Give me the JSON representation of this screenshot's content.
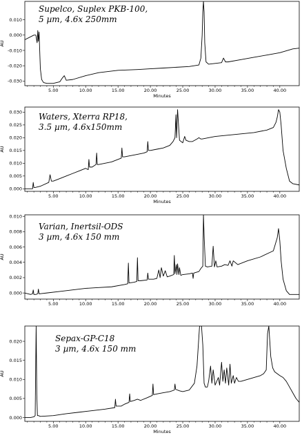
{
  "chart_data": [
    {
      "type": "line",
      "title": "Supelco, Suplex PKB-100,",
      "subtitle": "5 µm, 4.6x 250mm",
      "xlabel": "Minutes",
      "ylabel": "AU",
      "xlim": [
        0.6,
        43
      ],
      "ylim": [
        -0.033,
        0.022
      ],
      "xticks": [
        {
          "v": 5,
          "label": "5.00"
        },
        {
          "v": 10,
          "label": "10.00"
        },
        {
          "v": 15,
          "label": "15.00"
        },
        {
          "v": 20,
          "label": "20.00"
        },
        {
          "v": 25,
          "label": "25.00"
        },
        {
          "v": 30,
          "label": "30.00"
        },
        {
          "v": 35,
          "label": "35.00"
        },
        {
          "v": 40,
          "label": "40.00"
        }
      ],
      "yticks": [
        {
          "v": 0.01,
          "label": "0.010"
        },
        {
          "v": 0.0,
          "label": "0.000"
        },
        {
          "v": -0.01,
          "label": "-0.010"
        },
        {
          "v": -0.02,
          "label": "-0.020"
        },
        {
          "v": -0.03,
          "label": "-0.030"
        }
      ],
      "series": [
        {
          "x": [
            0.6,
            2.0,
            2.3,
            2.5,
            2.6,
            2.7,
            2.8,
            2.9,
            3.0,
            3.2,
            3.5,
            4.0,
            5.0,
            6.0,
            6.4,
            6.7,
            7.0,
            8.0,
            10.0,
            12.0,
            15.0,
            18.0,
            20.0,
            22.0,
            24.0,
            26.0,
            27.5,
            27.8,
            28.0,
            28.1,
            28.2,
            28.3,
            28.4,
            28.6,
            29.0,
            30.0,
            31.0,
            31.3,
            31.6,
            32.0,
            34.0,
            36.0,
            38.0,
            40.0,
            42.0,
            43.0
          ],
          "y": [
            -0.003,
            0.0,
            0.0,
            -0.005,
            0.003,
            -0.004,
            0.002,
            -0.01,
            -0.022,
            -0.029,
            -0.031,
            -0.0315,
            -0.0315,
            -0.0305,
            -0.028,
            -0.0265,
            -0.0295,
            -0.029,
            -0.0265,
            -0.0245,
            -0.023,
            -0.0225,
            -0.022,
            -0.0215,
            -0.021,
            -0.0205,
            -0.0195,
            -0.015,
            0.0,
            0.015,
            0.022,
            0.015,
            -0.005,
            -0.0175,
            -0.019,
            -0.0185,
            -0.018,
            -0.015,
            -0.0175,
            -0.0175,
            -0.016,
            -0.0145,
            -0.013,
            -0.0115,
            -0.009,
            -0.0085
          ]
        }
      ]
    },
    {
      "type": "line",
      "title": "Waters, Xterra RP18,",
      "subtitle": "3.5 µm, 4.6x150mm",
      "xlabel": "Minutes",
      "ylabel": "AU",
      "xlim": [
        0.6,
        43
      ],
      "ylim": [
        -0.001,
        0.032
      ],
      "xticks": [
        {
          "v": 5,
          "label": "5.00"
        },
        {
          "v": 10,
          "label": "10.00"
        },
        {
          "v": 15,
          "label": "15.00"
        },
        {
          "v": 20,
          "label": "20.00"
        },
        {
          "v": 25,
          "label": "25.00"
        },
        {
          "v": 30,
          "label": "30.00"
        },
        {
          "v": 35,
          "label": "35.00"
        },
        {
          "v": 40,
          "label": "40.00"
        }
      ],
      "yticks": [
        {
          "v": 0.0,
          "label": "0.000"
        },
        {
          "v": 0.005,
          "label": "0.005"
        },
        {
          "v": 0.01,
          "label": "0.010"
        },
        {
          "v": 0.015,
          "label": "0.015"
        },
        {
          "v": 0.02,
          "label": "0.020"
        },
        {
          "v": 0.025,
          "label": "0.025"
        },
        {
          "v": 0.03,
          "label": "0.030"
        }
      ],
      "series": [
        {
          "x": [
            0.6,
            1.5,
            1.8,
            1.9,
            2.0,
            2.2,
            3.0,
            4.3,
            4.5,
            4.7,
            5.0,
            6.0,
            7.0,
            8.0,
            9.0,
            10.0,
            10.4,
            10.5,
            10.6,
            11.0,
            11.6,
            11.7,
            11.8,
            12.0,
            14.0,
            15.5,
            15.6,
            15.7,
            16.0,
            18.0,
            19.0,
            19.5,
            19.6,
            19.7,
            20.0,
            21.0,
            22.0,
            23.0,
            23.5,
            23.8,
            23.95,
            24.05,
            24.2,
            24.5,
            25.0,
            25.3,
            25.5,
            26.0,
            26.5,
            27.2,
            27.5,
            27.8,
            28.0,
            30.0,
            32.0,
            34.0,
            36.0,
            38.0,
            39.0,
            39.4,
            39.6,
            39.8,
            40.0,
            40.2,
            40.5,
            41.0,
            41.5,
            42.0,
            43.0
          ],
          "y": [
            0.0,
            0.0,
            0.0,
            0.0025,
            0.0005,
            0.0005,
            0.001,
            0.0025,
            0.0055,
            0.003,
            0.003,
            0.004,
            0.005,
            0.006,
            0.007,
            0.008,
            0.0075,
            0.0115,
            0.0085,
            0.0085,
            0.0095,
            0.014,
            0.0095,
            0.0095,
            0.0105,
            0.012,
            0.016,
            0.0125,
            0.0125,
            0.0135,
            0.014,
            0.0145,
            0.0185,
            0.015,
            0.015,
            0.0155,
            0.016,
            0.017,
            0.0185,
            0.02,
            0.029,
            0.02,
            0.031,
            0.019,
            0.018,
            0.0205,
            0.019,
            0.0185,
            0.0185,
            0.0195,
            0.02,
            0.0195,
            0.0195,
            0.0205,
            0.021,
            0.0215,
            0.022,
            0.023,
            0.024,
            0.026,
            0.028,
            0.031,
            0.03,
            0.025,
            0.015,
            0.008,
            0.003,
            0.002,
            0.0015
          ]
        }
      ]
    },
    {
      "type": "line",
      "title": "Varian, Inertsil-ODS",
      "subtitle": "3 µm, 4.6x 150 mm",
      "xlabel": "",
      "ylabel": "AU",
      "xlim": [
        0.6,
        43
      ],
      "ylim": [
        -0.0008,
        0.0102
      ],
      "xticks": [
        {
          "v": 5,
          "label": "5.00"
        },
        {
          "v": 10,
          "label": "10.00"
        },
        {
          "v": 15,
          "label": "15.00"
        },
        {
          "v": 20,
          "label": "20.00"
        },
        {
          "v": 25,
          "label": "25.00"
        },
        {
          "v": 30,
          "label": "30.00"
        },
        {
          "v": 35,
          "label": "35.00"
        },
        {
          "v": 40,
          "label": "40.00"
        }
      ],
      "yticks": [
        {
          "v": 0.0,
          "label": "0.000"
        },
        {
          "v": 0.002,
          "label": "0.002"
        },
        {
          "v": 0.004,
          "label": "0.004"
        },
        {
          "v": 0.006,
          "label": "0.006"
        },
        {
          "v": 0.008,
          "label": "0.008"
        },
        {
          "v": 0.01,
          "label": "0.010"
        }
      ],
      "series": [
        {
          "x": [
            0.6,
            1.5,
            1.8,
            1.9,
            2.0,
            2.3,
            2.6,
            2.7,
            2.8,
            3.0,
            4.0,
            6.0,
            8.0,
            10.0,
            12.0,
            14.0,
            16.0,
            16.5,
            16.6,
            16.7,
            17.5,
            17.9,
            18.0,
            18.1,
            18.5,
            19.5,
            19.6,
            19.7,
            20.5,
            21.0,
            21.3,
            21.5,
            21.7,
            22.0,
            22.3,
            22.6,
            23.0,
            23.6,
            23.7,
            23.8,
            24.0,
            24.1,
            24.2,
            24.4,
            24.5,
            24.7,
            25.0,
            26.0,
            26.5,
            26.6,
            26.7,
            27.5,
            27.8,
            28.1,
            28.2,
            28.3,
            28.5,
            28.8,
            29.5,
            29.7,
            29.9,
            30.1,
            30.3,
            31.0,
            31.5,
            32.0,
            32.3,
            32.6,
            32.8,
            33.5,
            35.0,
            37.0,
            39.0,
            39.6,
            39.8,
            40.0,
            40.2,
            40.5,
            41.0,
            41.5,
            42.0,
            43.0
          ],
          "y": [
            0.0,
            -0.0002,
            -0.0001,
            0.0004,
            -0.0002,
            -0.0002,
            -0.0001,
            0.0005,
            -0.0001,
            -0.0001,
            0.0,
            0.0002,
            0.0004,
            0.0006,
            0.0007,
            0.0008,
            0.0011,
            0.0012,
            0.0039,
            0.0013,
            0.0014,
            0.0015,
            0.0046,
            0.0016,
            0.0016,
            0.0017,
            0.0026,
            0.0018,
            0.0018,
            0.0019,
            0.003,
            0.002,
            0.0033,
            0.0022,
            0.0029,
            0.0021,
            0.0022,
            0.0024,
            0.0049,
            0.0025,
            0.0037,
            0.0024,
            0.0038,
            0.0024,
            0.0033,
            0.0023,
            0.0024,
            0.0025,
            0.0026,
            0.0019,
            0.0026,
            0.0028,
            0.0032,
            0.0035,
            0.0102,
            0.0075,
            0.0035,
            0.0034,
            0.0035,
            0.0061,
            0.0034,
            0.0042,
            0.0034,
            0.0035,
            0.0037,
            0.0036,
            0.0042,
            0.0035,
            0.0042,
            0.0037,
            0.0042,
            0.0047,
            0.0055,
            0.0072,
            0.0084,
            0.0068,
            0.0042,
            0.0018,
            0.0003,
            -0.0002,
            -0.0002,
            -0.0002
          ]
        }
      ]
    },
    {
      "type": "line",
      "title": "Sepax-GP-C18",
      "subtitle": "3 µm, 4.6x 150 mm",
      "xlabel": "Minutes",
      "ylabel": "AU",
      "xlim": [
        0.6,
        43
      ],
      "ylim": [
        -0.001,
        0.024
      ],
      "xticks": [
        {
          "v": 5,
          "label": "5.00"
        },
        {
          "v": 10,
          "label": "10.00"
        },
        {
          "v": 15,
          "label": "15.00"
        },
        {
          "v": 20,
          "label": "20.00"
        },
        {
          "v": 25,
          "label": "25.00"
        },
        {
          "v": 30,
          "label": "30.00"
        },
        {
          "v": 35,
          "label": "35.00"
        },
        {
          "v": 40,
          "label": "40.00"
        }
      ],
      "yticks": [
        {
          "v": 0.0,
          "label": "0.000"
        },
        {
          "v": 0.005,
          "label": "0.005"
        },
        {
          "v": 0.01,
          "label": "0.010"
        },
        {
          "v": 0.015,
          "label": "0.015"
        },
        {
          "v": 0.02,
          "label": "0.020"
        }
      ],
      "series": [
        {
          "x": [
            0.6,
            1.5,
            2.0,
            2.2,
            2.35,
            2.45,
            2.55,
            2.7,
            3.0,
            5.0,
            7.0,
            9.0,
            11.0,
            13.0,
            14.5,
            14.6,
            14.7,
            15.5,
            16.0,
            16.7,
            16.8,
            16.9,
            17.5,
            18.0,
            18.5,
            19.5,
            20.3,
            20.4,
            20.5,
            21.0,
            22.0,
            23.0,
            23.7,
            23.8,
            23.9,
            24.5,
            25.0,
            26.0,
            26.8,
            27.2,
            27.6,
            27.9,
            28.1,
            28.3,
            28.5,
            28.8,
            29.0,
            29.3,
            29.5,
            29.7,
            30.0,
            30.5,
            30.7,
            31.0,
            31.2,
            31.4,
            31.6,
            31.8,
            32.1,
            32.3,
            32.5,
            32.8,
            33.0,
            33.3,
            33.6,
            34.0,
            35.0,
            36.0,
            37.0,
            37.5,
            37.9,
            38.1,
            38.3,
            38.6,
            38.9,
            39.2,
            39.6,
            40.0,
            40.5,
            41.0,
            41.5,
            42.0,
            42.5,
            43.0
          ],
          "y": [
            0.0,
            0.0,
            0.0002,
            0.0005,
            0.024,
            0.006,
            0.0005,
            0.0005,
            0.0003,
            0.0005,
            0.001,
            0.0014,
            0.0018,
            0.0022,
            0.0026,
            0.0048,
            0.003,
            0.003,
            0.0035,
            0.004,
            0.0062,
            0.0042,
            0.0045,
            0.0048,
            0.0045,
            0.0052,
            0.0058,
            0.0088,
            0.006,
            0.0062,
            0.0065,
            0.0068,
            0.0072,
            0.0088,
            0.0074,
            0.007,
            0.0068,
            0.0072,
            0.009,
            0.0135,
            0.024,
            0.024,
            0.019,
            0.009,
            0.008,
            0.008,
            0.0095,
            0.0135,
            0.009,
            0.0125,
            0.0085,
            0.0105,
            0.0085,
            0.0145,
            0.0095,
            0.0125,
            0.009,
            0.013,
            0.0085,
            0.014,
            0.009,
            0.011,
            0.009,
            0.0105,
            0.0095,
            0.0095,
            0.01,
            0.0105,
            0.011,
            0.0115,
            0.0125,
            0.022,
            0.024,
            0.016,
            0.013,
            0.012,
            0.0115,
            0.011,
            0.0105,
            0.0095,
            0.008,
            0.0065,
            0.005,
            0.004
          ]
        }
      ]
    }
  ]
}
